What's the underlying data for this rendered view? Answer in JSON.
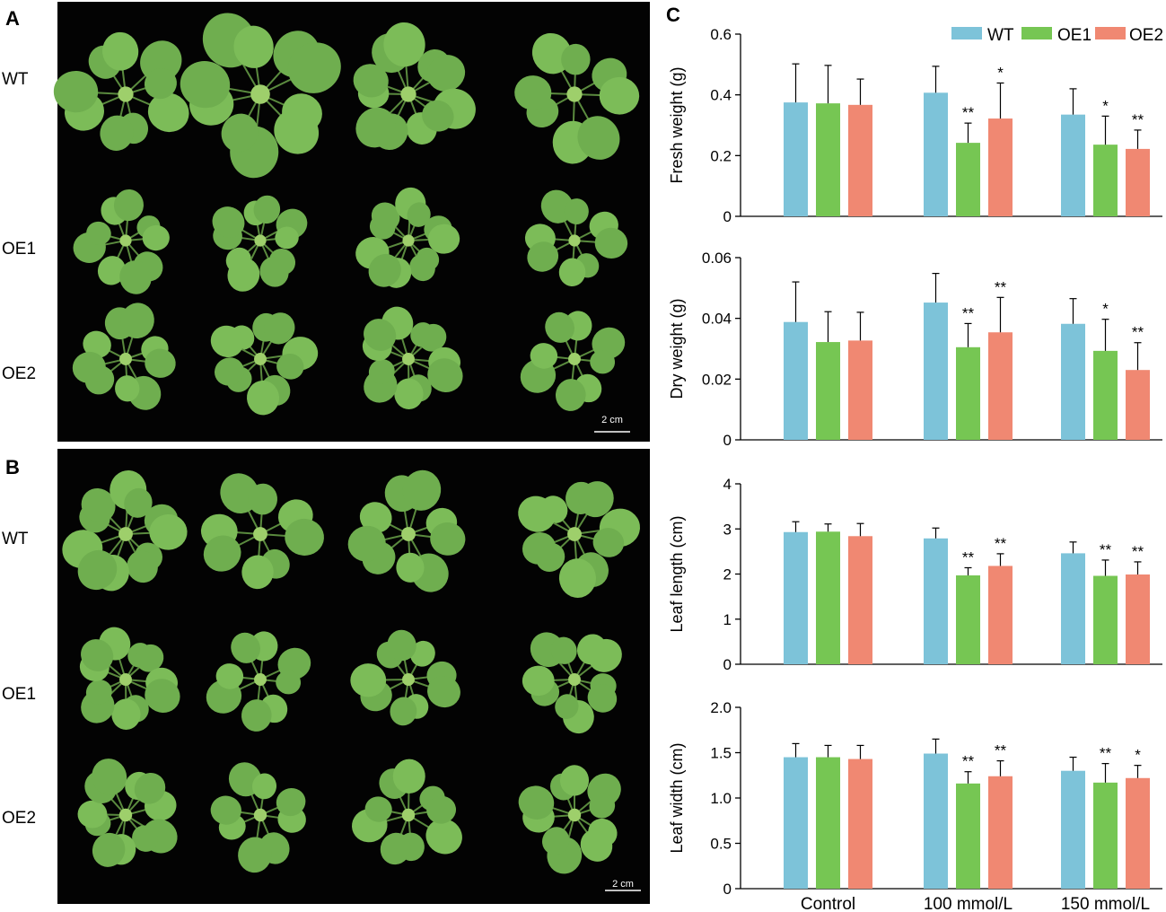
{
  "panels": {
    "A": {
      "letter": "A",
      "row_labels": [
        "WT",
        "OE1",
        "OE2"
      ],
      "scale_bar": "2 cm"
    },
    "B": {
      "letter": "B",
      "row_labels": [
        "WT",
        "OE1",
        "OE2"
      ],
      "scale_bar": "2 cm"
    },
    "C": {
      "letter": "C"
    }
  },
  "colors": {
    "WT": "#7dc3d9",
    "OE1": "#76c653",
    "OE2": "#f08872",
    "photo_bg": "#030303",
    "leaf": "#6fae4f"
  },
  "legend": [
    "WT",
    "OE1",
    "OE2"
  ],
  "chart_data": [
    {
      "type": "bar",
      "title": "",
      "categories": [
        "Control",
        "100 mmol/L",
        "150 mmol/L"
      ],
      "ylabel": "Fresh weight (g)",
      "ylim": [
        0,
        0.6
      ],
      "yticks": [
        "0",
        "0.2",
        "0.4",
        "0.6"
      ],
      "series": [
        {
          "name": "WT",
          "values": [
            0.375,
            0.407,
            0.335
          ],
          "errors": [
            0.127,
            0.087,
            0.085
          ],
          "sig": [
            "",
            "",
            ""
          ]
        },
        {
          "name": "OE1",
          "values": [
            0.372,
            0.242,
            0.236
          ],
          "errors": [
            0.125,
            0.065,
            0.094
          ],
          "sig": [
            "",
            "**",
            "*"
          ]
        },
        {
          "name": "OE2",
          "values": [
            0.367,
            0.322,
            0.222
          ],
          "errors": [
            0.085,
            0.117,
            0.062
          ],
          "sig": [
            "",
            "*",
            "**"
          ]
        }
      ]
    },
    {
      "type": "bar",
      "title": "",
      "categories": [
        "Control",
        "100 mmol/L",
        "150 mmol/L"
      ],
      "ylabel": "Dry weight (g)",
      "ylim": [
        0,
        0.06
      ],
      "yticks": [
        "0",
        "0.02",
        "0.04",
        "0.06"
      ],
      "series": [
        {
          "name": "WT",
          "values": [
            0.0388,
            0.0452,
            0.0382
          ],
          "errors": [
            0.0132,
            0.0096,
            0.0083
          ],
          "sig": [
            "",
            "",
            ""
          ]
        },
        {
          "name": "OE1",
          "values": [
            0.0322,
            0.0305,
            0.0293
          ],
          "errors": [
            0.01,
            0.0078,
            0.0104
          ],
          "sig": [
            "",
            "**",
            "*"
          ]
        },
        {
          "name": "OE2",
          "values": [
            0.0327,
            0.0354,
            0.023
          ],
          "errors": [
            0.0093,
            0.0115,
            0.009
          ],
          "sig": [
            "",
            "**",
            "**"
          ]
        }
      ]
    },
    {
      "type": "bar",
      "title": "",
      "categories": [
        "Control",
        "100 mmol/L",
        "150 mmol/L"
      ],
      "ylabel": "Leaf length (cm)",
      "ylim": [
        0,
        4
      ],
      "yticks": [
        "0",
        "1",
        "2",
        "3",
        "4"
      ],
      "series": [
        {
          "name": "WT",
          "values": [
            2.93,
            2.79,
            2.46
          ],
          "errors": [
            0.23,
            0.23,
            0.25
          ],
          "sig": [
            "",
            "",
            ""
          ]
        },
        {
          "name": "OE1",
          "values": [
            2.94,
            1.97,
            1.96
          ],
          "errors": [
            0.17,
            0.17,
            0.35
          ],
          "sig": [
            "",
            "**",
            "**"
          ]
        },
        {
          "name": "OE2",
          "values": [
            2.84,
            2.18,
            1.99
          ],
          "errors": [
            0.28,
            0.27,
            0.28
          ],
          "sig": [
            "",
            "**",
            "**"
          ]
        }
      ]
    },
    {
      "type": "bar",
      "title": "",
      "categories": [
        "Control",
        "100 mmol/L",
        "150 mmol/L"
      ],
      "ylabel": "Leaf width (cm)",
      "ylim": [
        0,
        2.0
      ],
      "yticks": [
        "0",
        "0.5",
        "1.0",
        "1.5",
        "2.0"
      ],
      "series": [
        {
          "name": "WT",
          "values": [
            1.45,
            1.49,
            1.3
          ],
          "errors": [
            0.15,
            0.16,
            0.15
          ],
          "sig": [
            "",
            "",
            ""
          ]
        },
        {
          "name": "OE1",
          "values": [
            1.45,
            1.16,
            1.17
          ],
          "errors": [
            0.13,
            0.13,
            0.21
          ],
          "sig": [
            "",
            "**",
            "**"
          ]
        },
        {
          "name": "OE2",
          "values": [
            1.43,
            1.24,
            1.22
          ],
          "errors": [
            0.15,
            0.17,
            0.14
          ],
          "sig": [
            "",
            "**",
            "*"
          ]
        }
      ]
    }
  ]
}
